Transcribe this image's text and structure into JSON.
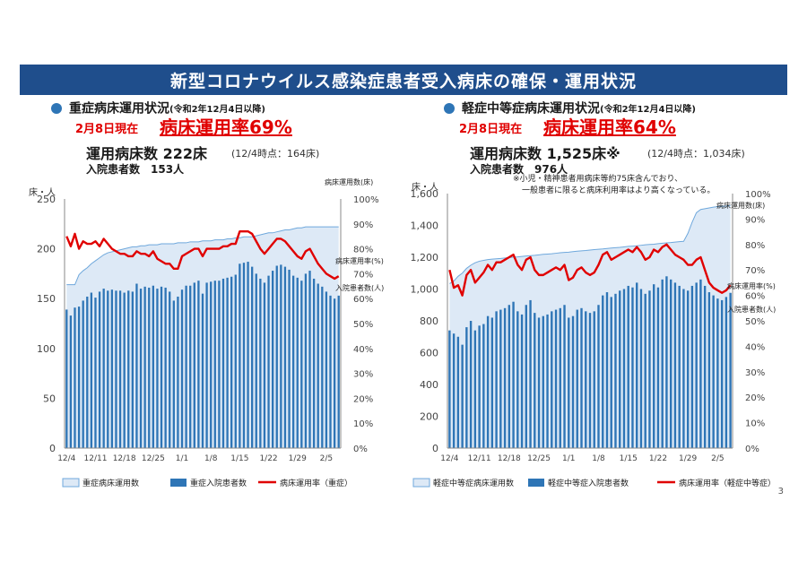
{
  "banner": {
    "title": "新型コロナウイルス感染症患者受入病床の確保・運用状況"
  },
  "page_number": "3",
  "panels": [
    {
      "heading": "重症病床運用状況",
      "heading_note": "(令和2年12月4日以降)",
      "as_of": "2月8日現在",
      "rate_label": "病床運用率69%",
      "beds_label": "運用病床数 222床",
      "beds_note": "(12/4時点：164床)",
      "patients_label": "入院患者数　153人"
    },
    {
      "heading": "軽症中等症病床運用状況",
      "heading_note": "(令和2年12月4日以降)",
      "as_of": "2月8日現在",
      "rate_label": "病床運用率64%",
      "beds_label": "運用病床数 1,525床※",
      "beds_note": "(12/4時点：1,034床)",
      "patients_label": "入院患者数　976人",
      "footnote_lines": [
        "※小児・精神患者用病床等約75床含んでおり、",
        "一般患者に限ると病床利用率はより高くなっている。"
      ]
    }
  ],
  "colors": {
    "banner": "#1f4e8c",
    "area": "#dde9f6",
    "area_edge": "#6fa8dc",
    "bar": "#2e75b6",
    "line": "#e00000",
    "text_red": "#e00000"
  },
  "chart_data": [
    {
      "type": "bar",
      "yunit": "床・人",
      "ylim": [
        0,
        250
      ],
      "yticks": [
        0,
        50,
        100,
        150,
        200,
        250
      ],
      "y2lim": [
        0,
        100
      ],
      "y2ticks": [
        "0%",
        "10%",
        "20%",
        "30%",
        "40%",
        "50%",
        "60%",
        "70%",
        "80%",
        "90%",
        "100%"
      ],
      "xtick_labels": [
        {
          "index": 0,
          "label": "12/4"
        },
        {
          "index": 7,
          "label": "12/11"
        },
        {
          "index": 14,
          "label": "12/18"
        },
        {
          "index": 21,
          "label": "12/25"
        },
        {
          "index": 28,
          "label": "1/1"
        },
        {
          "index": 35,
          "label": "1/8"
        },
        {
          "index": 42,
          "label": "1/15"
        },
        {
          "index": 49,
          "label": "1/22"
        },
        {
          "index": 56,
          "label": "1/29"
        },
        {
          "index": 63,
          "label": "2/5"
        }
      ],
      "series": [
        {
          "name": "重症病床運用数",
          "kind": "area",
          "inline_label": "病床運用数(床)",
          "values": [
            164,
            164,
            164,
            174,
            178,
            181,
            185,
            188,
            191,
            194,
            196,
            197,
            198,
            199,
            200,
            201,
            202,
            202,
            203,
            203,
            204,
            204,
            204,
            205,
            205,
            205,
            205,
            206,
            206,
            206,
            207,
            207,
            207,
            208,
            208,
            208,
            209,
            209,
            209,
            210,
            210,
            211,
            211,
            212,
            212,
            212,
            213,
            214,
            215,
            216,
            216,
            217,
            218,
            219,
            219,
            220,
            221,
            221,
            222,
            222,
            222,
            222,
            222,
            222,
            222,
            222,
            222
          ]
        },
        {
          "name": "重症入院患者数",
          "kind": "bar",
          "inline_label": "入院患者数(人)",
          "values": [
            139,
            133,
            141,
            142,
            148,
            152,
            156,
            151,
            157,
            160,
            158,
            159,
            158,
            158,
            156,
            158,
            157,
            165,
            160,
            162,
            161,
            163,
            160,
            162,
            161,
            157,
            148,
            152,
            159,
            163,
            163,
            166,
            168,
            155,
            166,
            167,
            168,
            168,
            170,
            171,
            172,
            174,
            185,
            186,
            187,
            182,
            175,
            170,
            166,
            173,
            178,
            183,
            184,
            182,
            179,
            173,
            171,
            168,
            175,
            178,
            170,
            165,
            162,
            157,
            153,
            150,
            153
          ]
        },
        {
          "name": "病床運用率（重症）",
          "kind": "line",
          "inline_label": "病床運用率(%)",
          "values": [
            85,
            81,
            86,
            80,
            83,
            82,
            82,
            83,
            81,
            84,
            82,
            80,
            79,
            78,
            78,
            77,
            77,
            79,
            78,
            78,
            77,
            79,
            76,
            75,
            74,
            74,
            72,
            72,
            77,
            78,
            79,
            80,
            80,
            77,
            80,
            80,
            80,
            80,
            81,
            81,
            82,
            82,
            87,
            87,
            87,
            86,
            83,
            80,
            78,
            80,
            82,
            84,
            84,
            83,
            81,
            79,
            77,
            76,
            79,
            80,
            77,
            74,
            72,
            70,
            69,
            68,
            69
          ]
        }
      ]
    },
    {
      "type": "bar",
      "yunit": "床・人",
      "ylim": [
        0,
        1600
      ],
      "yticks": [
        "0",
        "200",
        "400",
        "600",
        "800",
        "1,000",
        "1,200",
        "1,400",
        "1,600"
      ],
      "y2lim": [
        0,
        100
      ],
      "y2ticks": [
        "0%",
        "10%",
        "20%",
        "30%",
        "40%",
        "50%",
        "60%",
        "70%",
        "80%",
        "90%",
        "100%"
      ],
      "xtick_labels": [
        {
          "index": 0,
          "label": "12/4"
        },
        {
          "index": 7,
          "label": "12/11"
        },
        {
          "index": 14,
          "label": "12/18"
        },
        {
          "index": 21,
          "label": "12/25"
        },
        {
          "index": 28,
          "label": "1/1"
        },
        {
          "index": 35,
          "label": "1/8"
        },
        {
          "index": 42,
          "label": "1/15"
        },
        {
          "index": 49,
          "label": "1/22"
        },
        {
          "index": 56,
          "label": "1/29"
        },
        {
          "index": 63,
          "label": "2/5"
        }
      ],
      "series": [
        {
          "name": "軽症中等症病床運用数",
          "kind": "area",
          "inline_label": "病床運用数(床)",
          "values": [
            1034,
            1050,
            1080,
            1100,
            1130,
            1150,
            1165,
            1175,
            1180,
            1185,
            1188,
            1190,
            1192,
            1195,
            1198,
            1200,
            1202,
            1205,
            1208,
            1210,
            1212,
            1215,
            1218,
            1220,
            1222,
            1225,
            1228,
            1230,
            1232,
            1235,
            1238,
            1240,
            1242,
            1245,
            1248,
            1250,
            1252,
            1255,
            1258,
            1260,
            1262,
            1265,
            1268,
            1270,
            1272,
            1275,
            1278,
            1280,
            1282,
            1285,
            1288,
            1290,
            1292,
            1295,
            1298,
            1300,
            1350,
            1420,
            1480,
            1500,
            1505,
            1510,
            1515,
            1518,
            1520,
            1522,
            1525
          ]
        },
        {
          "name": "軽症中等症入院患者数",
          "kind": "bar",
          "inline_label": "入院患者数(人)",
          "values": [
            740,
            720,
            700,
            650,
            760,
            800,
            740,
            770,
            780,
            830,
            820,
            860,
            870,
            880,
            900,
            920,
            860,
            840,
            900,
            930,
            850,
            820,
            830,
            840,
            860,
            870,
            880,
            900,
            820,
            830,
            870,
            880,
            860,
            850,
            860,
            900,
            960,
            980,
            950,
            970,
            990,
            1000,
            1020,
            1010,
            1040,
            1000,
            970,
            990,
            1030,
            1010,
            1060,
            1080,
            1060,
            1040,
            1020,
            1000,
            990,
            1020,
            1040,
            1060,
            1020,
            980,
            960,
            940,
            930,
            950,
            976
          ]
        },
        {
          "name": "病床運用率（軽症中等症）",
          "kind": "line",
          "inline_label": "病床運用率(%)",
          "values": [
            70,
            63,
            64,
            60,
            68,
            70,
            65,
            67,
            69,
            72,
            70,
            73,
            73,
            74,
            75,
            76,
            72,
            70,
            74,
            75,
            70,
            68,
            68,
            69,
            70,
            71,
            70,
            72,
            66,
            67,
            70,
            71,
            69,
            68,
            69,
            72,
            76,
            77,
            74,
            75,
            76,
            77,
            78,
            77,
            79,
            77,
            74,
            75,
            78,
            77,
            79,
            80,
            78,
            76,
            75,
            74,
            72,
            72,
            74,
            75,
            70,
            65,
            63,
            62,
            61,
            62,
            64
          ]
        }
      ]
    }
  ]
}
